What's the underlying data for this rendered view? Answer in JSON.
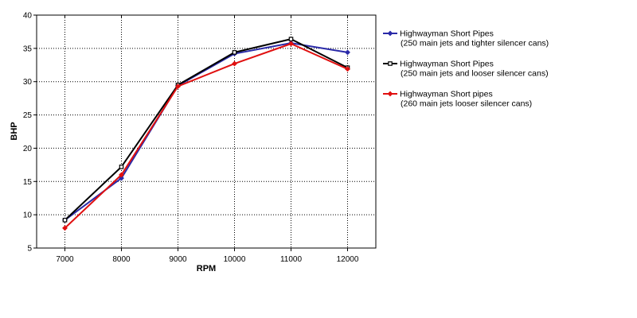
{
  "chart_data": {
    "type": "line",
    "title": "",
    "xlabel": "RPM",
    "ylabel": "BHP",
    "x": [
      7000,
      8000,
      9000,
      10000,
      11000,
      12000
    ],
    "xlim": [
      6500,
      12500
    ],
    "ylim": [
      5,
      40
    ],
    "y_ticks": [
      5,
      10,
      15,
      20,
      25,
      30,
      35,
      40
    ],
    "x_tick_labels": [
      "7000",
      "8000",
      "9000",
      "10000",
      "11000",
      "12000"
    ],
    "y_tick_labels": [
      "5",
      "10",
      "15",
      "20",
      "25",
      "30",
      "35",
      "40"
    ],
    "grid": "dotted",
    "legend_position": "right",
    "series": [
      {
        "name": "Highwayman Short Pipes",
        "name_line2": "(250 main jets and tighter silencer cans)",
        "color": "#2a2aa8",
        "marker": "diamond",
        "values": [
          9.2,
          15.5,
          29.4,
          34.2,
          35.8,
          34.4
        ]
      },
      {
        "name": "Highwayman Short Pipes",
        "name_line2": "(250 main jets and looser silencer cans)",
        "color": "#000000",
        "marker": "square",
        "values": [
          9.2,
          17.2,
          29.5,
          34.4,
          36.4,
          32.1
        ]
      },
      {
        "name": "Highwayman Short pipes",
        "name_line2": "(260 main jets looser silencer cans)",
        "color": "#e01010",
        "marker": "diamond",
        "values": [
          8.0,
          16.0,
          29.3,
          32.7,
          35.7,
          31.9
        ]
      }
    ]
  }
}
